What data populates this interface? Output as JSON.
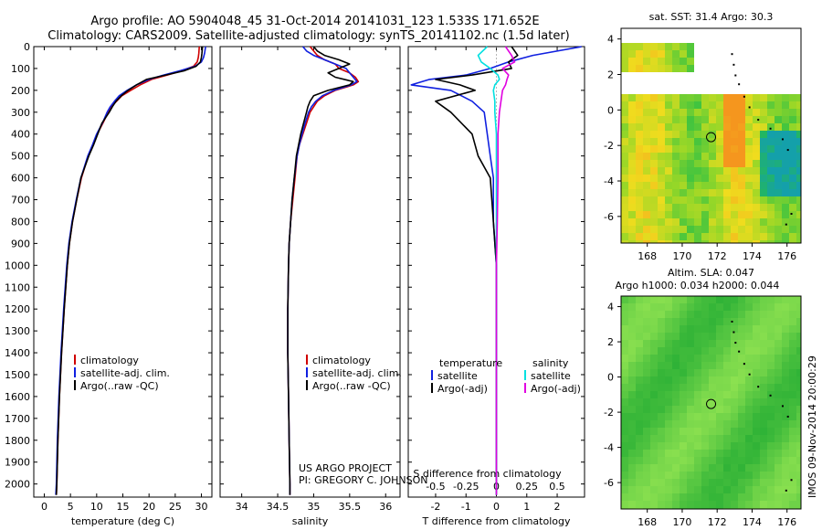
{
  "title_line1": "Argo profile: AO 5904048_45 31-Oct-2014 20141031_123 1.533S 171.652E",
  "title_line2": "Climatology: CARS2009. Satellite-adjusted climatology: synTS_20141102.nc (1.5d later)",
  "project_line1": "US ARGO PROJECT",
  "project_line2": "PI: GREGORY C. JOHNSON",
  "stamp": "IMOS 09-Nov-2014 20:00:29",
  "colors": {
    "climatology": "#d00000",
    "satellite": "#1020e0",
    "argo": "#000000",
    "sat_cyan": "#00e0e0",
    "argo_magenta": "#e000e0"
  },
  "depth_ticks": [
    0,
    100,
    200,
    300,
    400,
    500,
    600,
    700,
    800,
    900,
    1000,
    1100,
    1200,
    1300,
    1400,
    1500,
    1600,
    1700,
    1800,
    1900,
    2000
  ],
  "chart_data": [
    {
      "type": "line",
      "xlabel": "temperature (deg C)",
      "xlim": [
        -2,
        32
      ],
      "ylim": [
        2060,
        0
      ],
      "xticks": [
        0,
        5,
        10,
        15,
        20,
        25,
        30
      ],
      "legend": [
        "climatology",
        "satellite-adj. clim.",
        "Argo(..raw -QC)"
      ],
      "depth": [
        0,
        30,
        50,
        70,
        90,
        110,
        130,
        150,
        175,
        200,
        225,
        250,
        275,
        300,
        350,
        400,
        450,
        500,
        600,
        700,
        800,
        900,
        1000,
        1200,
        1400,
        1600,
        1800,
        2000,
        2050
      ],
      "series": [
        {
          "name": "climatology",
          "values": [
            29.6,
            29.5,
            29.4,
            29.2,
            28.5,
            26.3,
            23.5,
            20.5,
            18.3,
            16.5,
            14.8,
            13.8,
            12.8,
            12.2,
            11.2,
            10.1,
            9.3,
            8.4,
            7.1,
            6.2,
            5.4,
            4.8,
            4.4,
            3.8,
            3.3,
            2.9,
            2.6,
            2.4,
            2.3
          ]
        },
        {
          "name": "satellite-adj. clim.",
          "values": [
            30.8,
            30.6,
            30.4,
            30.0,
            28.8,
            26.0,
            22.8,
            20.0,
            17.6,
            15.8,
            14.3,
            13.4,
            12.6,
            12.0,
            11.1,
            10.0,
            9.2,
            8.3,
            7.0,
            6.1,
            5.3,
            4.7,
            4.3,
            3.7,
            3.2,
            2.8,
            2.5,
            2.3,
            2.2
          ]
        },
        {
          "name": "Argo(..raw -QC)",
          "values": [
            30.2,
            30.1,
            30.0,
            29.8,
            29.0,
            26.8,
            23.2,
            19.5,
            17.6,
            16.0,
            14.7,
            13.7,
            13.0,
            12.4,
            11.0,
            10.2,
            9.4,
            8.5,
            7.0,
            6.2,
            5.4,
            4.8,
            4.4,
            3.8,
            3.3,
            2.9,
            2.6,
            2.4,
            2.3
          ]
        }
      ]
    },
    {
      "type": "line",
      "xlabel": "salinity",
      "xlim": [
        33.7,
        36.2
      ],
      "ylim": [
        2060,
        0
      ],
      "xticks": [
        34,
        34.5,
        35,
        35.5,
        36
      ],
      "legend": [
        "climatology",
        "satellite-adj. clim.",
        "Argo(..raw -QC)"
      ],
      "depth": [
        0,
        20,
        40,
        60,
        80,
        100,
        120,
        140,
        160,
        175,
        200,
        225,
        250,
        275,
        300,
        350,
        400,
        450,
        500,
        600,
        700,
        800,
        900,
        1000,
        1200,
        1400,
        1600,
        1800,
        2000,
        2050
      ],
      "series": [
        {
          "name": "climatology",
          "values": [
            34.95,
            35.0,
            35.05,
            35.15,
            35.3,
            35.35,
            35.5,
            35.58,
            35.62,
            35.55,
            35.3,
            35.15,
            35.05,
            35.0,
            34.95,
            34.9,
            34.85,
            34.8,
            34.77,
            34.74,
            34.71,
            34.68,
            34.66,
            34.65,
            34.64,
            34.64,
            34.65,
            34.66,
            34.67,
            34.67
          ]
        },
        {
          "name": "satellite-adj. clim.",
          "values": [
            34.85,
            34.9,
            35.0,
            35.15,
            35.3,
            35.45,
            35.5,
            35.55,
            35.6,
            35.52,
            35.28,
            35.12,
            35.03,
            34.97,
            34.93,
            34.88,
            34.84,
            34.8,
            34.77,
            34.73,
            34.7,
            34.68,
            34.66,
            34.65,
            34.64,
            34.64,
            34.65,
            34.66,
            34.67,
            34.67
          ]
        },
        {
          "name": "Argo(..raw -QC)",
          "values": [
            35.0,
            35.05,
            35.15,
            35.35,
            35.5,
            35.35,
            35.2,
            35.3,
            35.55,
            35.5,
            35.2,
            35.0,
            34.95,
            34.92,
            34.9,
            34.86,
            34.82,
            34.79,
            34.76,
            34.73,
            34.7,
            34.68,
            34.66,
            34.65,
            34.64,
            34.64,
            34.65,
            34.66,
            34.67,
            34.67
          ]
        }
      ]
    },
    {
      "type": "line",
      "xlabel": "T difference from climatology",
      "xlabel_top": "S difference from climatology",
      "xlim": [
        -2.9,
        2.9
      ],
      "ylim": [
        2060,
        0
      ],
      "xticks": [
        -2,
        -1,
        0,
        1,
        2
      ],
      "xticks_top": [
        "-0.5",
        "-0.25",
        "0",
        "0.25",
        "0.5"
      ],
      "legend_titles": [
        "temperature",
        "salinity"
      ],
      "legend": [
        "satellite",
        "Argo(-adj)",
        "satellite",
        "Argo(-adj)"
      ],
      "depth": [
        0,
        40,
        70,
        100,
        130,
        150,
        175,
        200,
        250,
        300,
        400,
        500,
        600,
        800,
        1000,
        1200,
        1500,
        1800,
        2000,
        2050
      ],
      "series": [
        {
          "name": "temperature satellite",
          "values": [
            2.8,
            1.2,
            0.4,
            -0.2,
            -1.0,
            -2.2,
            -2.8,
            -1.5,
            -0.8,
            -0.4,
            -0.3,
            -0.2,
            -0.1,
            -0.1,
            0.0,
            0.0,
            0.0,
            0.0,
            0.0,
            0.0
          ]
        },
        {
          "name": "temperature Argo(-adj)",
          "values": [
            0.5,
            0.7,
            0.4,
            0.5,
            -0.8,
            -2.0,
            -1.2,
            -0.7,
            -2.0,
            -1.5,
            -0.8,
            -0.6,
            -0.2,
            -0.1,
            0.0,
            0.0,
            0.0,
            0.0,
            0.0,
            0.0
          ]
        },
        {
          "name": "salinity satellite",
          "values": [
            -0.3,
            -0.6,
            -0.5,
            -0.2,
            0.05,
            0.1,
            -0.05,
            -0.1,
            -0.05,
            -0.05,
            0.0,
            0.0,
            0.0,
            0.0,
            0.0,
            0.0,
            0.0,
            0.0,
            0.0,
            0.0
          ]
        },
        {
          "name": "salinity Argo(-adj)",
          "values": [
            0.3,
            0.5,
            0.6,
            0.2,
            0.4,
            0.35,
            0.3,
            0.2,
            0.15,
            0.1,
            0.05,
            0.05,
            0.05,
            0.03,
            0.0,
            0.0,
            0.0,
            0.0,
            0.0,
            0.0
          ]
        }
      ]
    },
    {
      "type": "heatmap",
      "title": "sat. SST: 31.4  Argo: 30.3",
      "xlim": [
        166.5,
        176.8
      ],
      "ylim": [
        -7.5,
        4.6
      ],
      "xticks": [
        168,
        170,
        172,
        174,
        176
      ],
      "yticks": [
        -6,
        -4,
        -2,
        0,
        2,
        4
      ],
      "marker": {
        "lon": 171.652,
        "lat": -1.533
      }
    },
    {
      "type": "heatmap",
      "title": "Altim. SLA: 0.047",
      "subtitle": "Argo h1000: 0.034 h2000: 0.044",
      "xlim": [
        166.5,
        176.8
      ],
      "ylim": [
        -7.5,
        4.6
      ],
      "xticks": [
        168,
        170,
        172,
        174,
        176
      ],
      "yticks": [
        -6,
        -4,
        -2,
        0,
        2,
        4
      ],
      "marker": {
        "lon": 171.652,
        "lat": -1.533
      }
    }
  ]
}
